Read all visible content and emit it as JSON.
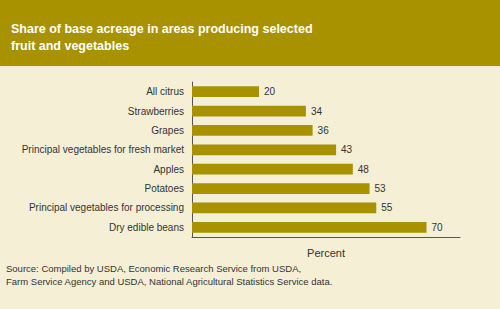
{
  "chart_data": {
    "type": "bar",
    "title": "Share of base acreage in areas producing selected\nfruit and vegetables",
    "orientation": "horizontal",
    "categories": [
      "Dry edible beans",
      "Principal vegetables for processing",
      "Potatoes",
      "Apples",
      "Principal vegetables for fresh market",
      "Grapes",
      "Strawberries",
      "All citrus"
    ],
    "values": [
      70,
      55,
      53,
      48,
      43,
      36,
      34,
      20
    ],
    "color": "#A89200",
    "xlabel": "Percent",
    "xlim": [
      0,
      80
    ],
    "tick_labels": "y",
    "data_labels": true,
    "grid": false,
    "annotations": [
      "Source: Compiled by USDA, Economic Research Service from USDA,\nFarm Service Agency and USDA, National Agricultural Statistics Service data."
    ]
  }
}
